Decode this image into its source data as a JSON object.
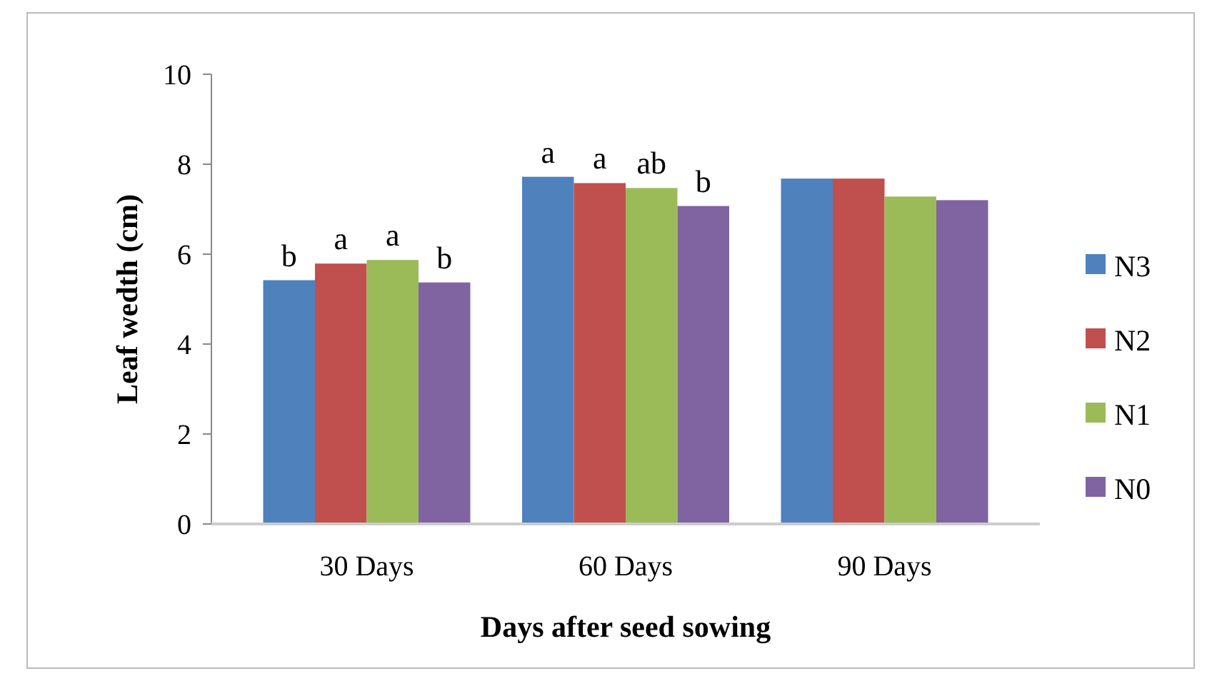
{
  "chart_data": {
    "type": "bar",
    "xlabel": "Days after seed sowing",
    "ylabel": "Leaf wedth (cm)",
    "categories": [
      "30 Days",
      "60 Days",
      "90 Days"
    ],
    "series": [
      {
        "name": "N3",
        "color": "#4f81bd",
        "values": [
          5.42,
          7.72,
          7.68
        ],
        "value_labels": [
          "b",
          "a",
          null
        ]
      },
      {
        "name": "N2",
        "color": "#c0504d",
        "values": [
          5.79,
          7.58,
          7.68
        ],
        "value_labels": [
          "a",
          "a",
          null
        ]
      },
      {
        "name": "N1",
        "color": "#9bbb59",
        "values": [
          5.87,
          7.47,
          7.28
        ],
        "value_labels": [
          "a",
          "ab",
          null
        ]
      },
      {
        "name": "N0",
        "color": "#8064a2",
        "values": [
          5.37,
          7.07,
          7.2
        ],
        "value_labels": [
          "b",
          "b",
          null
        ]
      }
    ],
    "ylim": [
      0,
      10
    ],
    "yticks": [
      0,
      2,
      4,
      6,
      8,
      10
    ],
    "grid": false,
    "legend": "right"
  }
}
